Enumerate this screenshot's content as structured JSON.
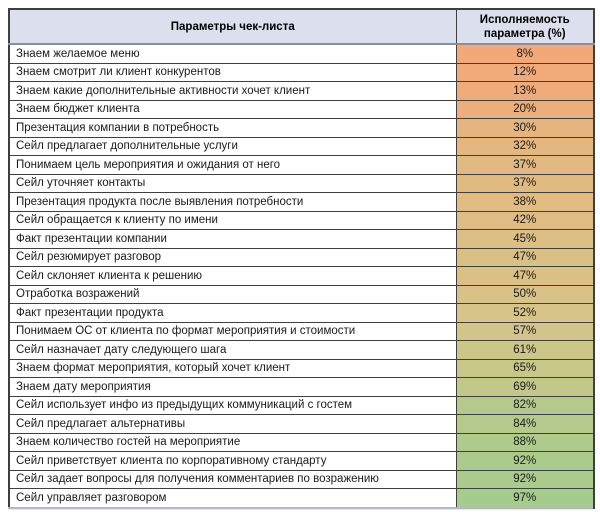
{
  "table": {
    "columns": [
      {
        "label": "Параметры чек-листа"
      },
      {
        "label": "Исполняемость параметра (%)"
      }
    ],
    "rows": [
      {
        "parameter": "Знаем желаемое меню",
        "value": "8%",
        "color": "#F4A777"
      },
      {
        "parameter": "Знаем смотрит ли клиент конкурентов",
        "value": "12%",
        "color": "#F1AA79"
      },
      {
        "parameter": "Знаем какие дополнительные активности хочет клиент",
        "value": "13%",
        "color": "#F0AB7A"
      },
      {
        "parameter": "Знаем бюджет клиента",
        "value": "20%",
        "color": "#ECAF7C"
      },
      {
        "parameter": "Презентация компании в потребность",
        "value": "30%",
        "color": "#E6B57F"
      },
      {
        "parameter": "Сейл предлагает дополнительные услуги",
        "value": "32%",
        "color": "#E4B780"
      },
      {
        "parameter": "Понимаем цель мероприятия и ожидания от него",
        "value": "37%",
        "color": "#E1BA82"
      },
      {
        "parameter": "Сейл уточняет контакты",
        "value": "37%",
        "color": "#E1BA82"
      },
      {
        "parameter": "Презентация продукта после выявления потребности",
        "value": "38%",
        "color": "#E0BB82"
      },
      {
        "parameter": "Сейл обращается к клиенту по имени",
        "value": "42%",
        "color": "#DEBD84"
      },
      {
        "parameter": "Факт презентации компании",
        "value": "45%",
        "color": "#DCBF85"
      },
      {
        "parameter": "Сейл резюмирует разговор",
        "value": "47%",
        "color": "#DBC086"
      },
      {
        "parameter": "Сейл склоняет клиента к решению",
        "value": "47%",
        "color": "#DBC086"
      },
      {
        "parameter": "Отработка возражений",
        "value": "50%",
        "color": "#D9C287"
      },
      {
        "parameter": "Факт презентации продукта",
        "value": "52%",
        "color": "#D7C488"
      },
      {
        "parameter": "Понимаем ОС от клиента по формат мероприятия и стоимости",
        "value": "57%",
        "color": "#D2C589"
      },
      {
        "parameter": "Сейл назначает дату следующего шага",
        "value": "61%",
        "color": "#CDC689"
      },
      {
        "parameter": "Знаем формат мероприятия, который хочет клиент",
        "value": "65%",
        "color": "#C9C68A"
      },
      {
        "parameter": "Знаем дату мероприятия",
        "value": "69%",
        "color": "#C4C78A"
      },
      {
        "parameter": "Сейл использует инфо из предыдущих коммуникаций с гостем",
        "value": "82%",
        "color": "#B6C98C"
      },
      {
        "parameter": "Сейл предлагает альтернативы",
        "value": "84%",
        "color": "#B4CA8C"
      },
      {
        "parameter": "Знаем количество гостей на мероприятие",
        "value": "88%",
        "color": "#AFCA8D"
      },
      {
        "parameter": "Сейл приветствует клиента по корпоративному стандарту",
        "value": "92%",
        "color": "#ABCB8D"
      },
      {
        "parameter": "Сейл задает вопросы для получения комментариев по возражению",
        "value": "92%",
        "color": "#ABCB8D"
      },
      {
        "parameter": "Сейл управляет разговором",
        "value": "97%",
        "color": "#A5CC8E"
      }
    ]
  },
  "colors": {
    "header_bg": "#DCE0EE",
    "border_inner": "#3F3F3F",
    "border_outer": "#3F3F3F",
    "header_bottom_border": "#8A8FA0",
    "scale_low": "#F4A777",
    "scale_mid": "#D7C488",
    "scale_high": "#A5CC8E",
    "text": "#1A1A1A"
  },
  "chart_data": {
    "type": "table",
    "columns": [
      "Параметры чек-листа",
      "Исполняемость параметра (%)"
    ],
    "categories": [
      "Знаем желаемое меню",
      "Знаем смотрит ли клиент конкурентов",
      "Знаем какие дополнительные активности хочет клиент",
      "Знаем бюджет клиента",
      "Презентация компании в потребность",
      "Сейл предлагает дополнительные услуги",
      "Понимаем цель мероприятия и ожидания от него",
      "Сейл уточняет контакты",
      "Презентация продукта после выявления потребности",
      "Сейл обращается к клиенту по имени",
      "Факт презентации компании",
      "Сейл резюмирует разговор",
      "Сейл склоняет клиента к решению",
      "Отработка возражений",
      "Факт презентации продукта",
      "Понимаем ОС от клиента по формат мероприятия и стоимости",
      "Сейл назначает дату следующего шага",
      "Знаем формат мероприятия, который хочет клиент",
      "Знаем дату мероприятия",
      "Сейл использует инфо из предыдущих коммуникаций с гостем",
      "Сейл предлагает альтернативы",
      "Знаем количество гостей на мероприятие",
      "Сейл приветствует клиента по корпоративному стандарту",
      "Сейл задает вопросы для получения комментариев по возражению",
      "Сейл управляет разговором"
    ],
    "values": [
      8,
      12,
      13,
      20,
      30,
      32,
      37,
      37,
      38,
      42,
      45,
      47,
      47,
      50,
      52,
      57,
      61,
      65,
      69,
      82,
      84,
      88,
      92,
      92,
      97
    ],
    "value_format": "percent",
    "sort": "ascending by value",
    "color_scale": {
      "low": "#F4A777",
      "mid": "#D7C488",
      "high": "#A5CC8E"
    }
  }
}
